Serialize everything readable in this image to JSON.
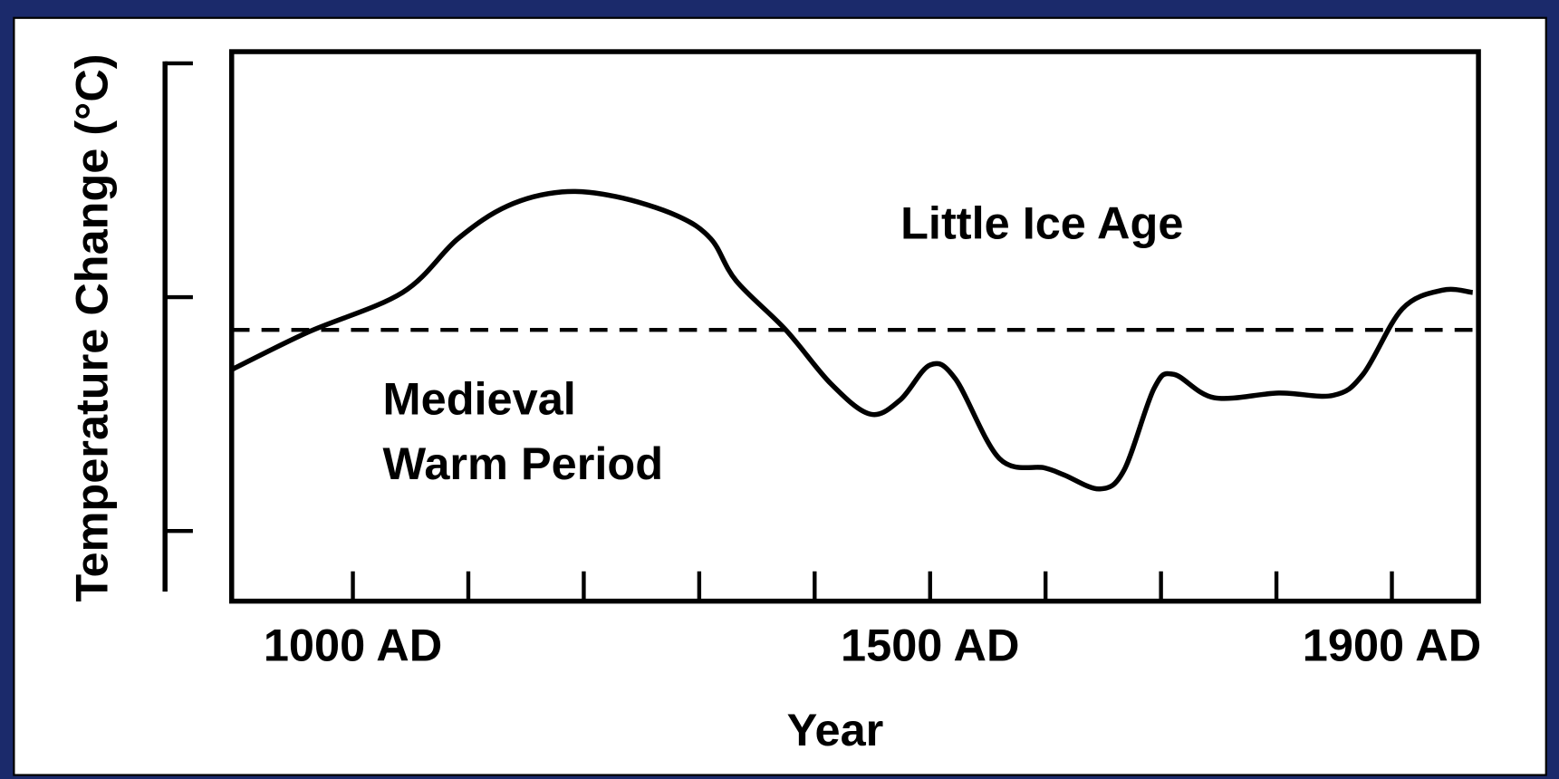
{
  "chart_data": {
    "type": "line",
    "xlabel": "Year",
    "ylabel": "Temperature Change (°C)",
    "annotations": [
      "Little Ice Age",
      "Medieval",
      "Warm Period"
    ],
    "x": [
      895,
      961,
      1043,
      1091,
      1134,
      1181,
      1228,
      1280,
      1310,
      1332,
      1375,
      1414,
      1448,
      1474,
      1500,
      1522,
      1560,
      1599,
      1616,
      1647,
      1668,
      1694,
      1711,
      1746,
      1802,
      1849,
      1875,
      1909,
      1944,
      1970
    ],
    "series": [
      {
        "color": "#000000",
        "values": [
          0.69,
          0.85,
          1.02,
          1.25,
          1.39,
          1.45,
          1.43,
          1.35,
          1.25,
          1.07,
          0.86,
          0.63,
          0.5,
          0.56,
          0.71,
          0.65,
          0.31,
          0.27,
          0.24,
          0.18,
          0.26,
          0.61,
          0.67,
          0.57,
          0.59,
          0.58,
          0.67,
          0.95,
          1.03,
          1.02
        ]
      }
    ],
    "reference_line": 0.86,
    "xlim": [
      895,
      1975
    ],
    "ylim": [
      -0.3,
      2.05
    ],
    "xticks": [
      {
        "value": 1000,
        "label": "1000 AD"
      },
      {
        "value": 1100,
        "label": null
      },
      {
        "value": 1200,
        "label": null
      },
      {
        "value": 1300,
        "label": null
      },
      {
        "value": 1400,
        "label": null
      },
      {
        "value": 1500,
        "label": "1500 AD"
      },
      {
        "value": 1600,
        "label": null
      },
      {
        "value": 1700,
        "label": null
      },
      {
        "value": 1800,
        "label": null
      },
      {
        "value": 1900,
        "label": "1900 AD"
      }
    ],
    "yticks": [
      {
        "value": 0,
        "label": null
      },
      {
        "value": 1,
        "label": null
      },
      {
        "value": 2,
        "label": null
      }
    ],
    "grid": false
  }
}
